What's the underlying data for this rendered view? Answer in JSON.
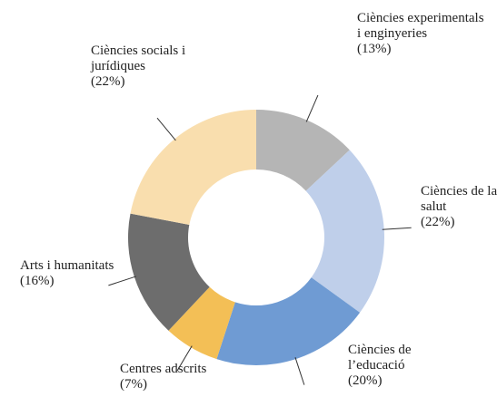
{
  "chart_data": {
    "type": "donut",
    "categories": [
      "Ciències experimentals i enginyeries",
      "Ciències de la salut",
      "Ciències de l’educació",
      "Centres adscrits",
      "Arts i humanitats",
      "Ciències socials i jurídiques"
    ],
    "values": [
      13,
      22,
      20,
      7,
      16,
      22
    ],
    "value_labels": [
      "(13%)",
      "(22%)",
      "(20%)",
      "(7%)",
      "(16%)",
      "(22%)"
    ],
    "colors": [
      "#b5b5b5",
      "#bfcfea",
      "#6f9bd3",
      "#f3bf56",
      "#6d6d6d",
      "#f9deae"
    ]
  }
}
